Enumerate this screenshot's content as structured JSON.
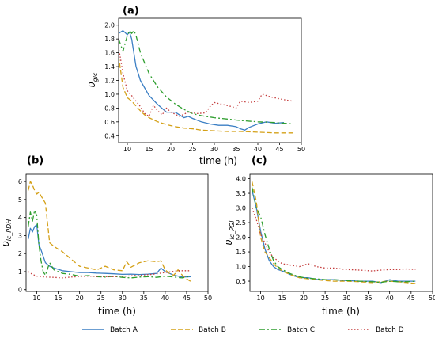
{
  "legend": {
    "placement": "bottom",
    "items": [
      {
        "label": "Batch A",
        "color": "#3b7fc4",
        "dash": "solid"
      },
      {
        "label": "Batch B",
        "color": "#d4a017",
        "dash": "dashed"
      },
      {
        "label": "Batch C",
        "color": "#2e9e2e",
        "dash": "dashdot"
      },
      {
        "label": "Batch D",
        "color": "#c43c3c",
        "dash": "dotted"
      }
    ]
  },
  "chart_data": [
    {
      "type": "line",
      "panel_label": "(a)",
      "xlabel": "time (h)",
      "ylabel": "v_glc",
      "ylabel_main": "υ",
      "ylabel_sub": "glc",
      "xlim": [
        8,
        50
      ],
      "ylim": [
        0.3,
        2.1
      ],
      "xticks": [
        10,
        15,
        20,
        25,
        30,
        35,
        40,
        45,
        50
      ],
      "yticks": [
        0.4,
        0.6,
        0.8,
        1.0,
        1.2,
        1.4,
        1.6,
        1.8,
        2.0
      ],
      "ytick_labels": [
        "0.4",
        "0.6",
        "0.8",
        "1.0",
        "1.2",
        "1.4",
        "1.6",
        "1.8",
        "2.0"
      ],
      "grid": false,
      "series": [
        {
          "name": "Batch A",
          "x": [
            8,
            9,
            10,
            10.5,
            11,
            12,
            13,
            15,
            17,
            19,
            20,
            21,
            22,
            23,
            24,
            25,
            27,
            29,
            31,
            33,
            35,
            36,
            37,
            38,
            40,
            42,
            44,
            46
          ],
          "y": [
            1.88,
            1.92,
            1.86,
            1.9,
            1.8,
            1.4,
            1.2,
            0.98,
            0.85,
            0.74,
            0.74,
            0.74,
            0.7,
            0.66,
            0.68,
            0.65,
            0.6,
            0.57,
            0.55,
            0.55,
            0.53,
            0.5,
            0.48,
            0.52,
            0.57,
            0.6,
            0.58,
            0.59
          ]
        },
        {
          "name": "Batch B",
          "x": [
            8,
            9,
            10,
            11,
            12,
            13,
            14,
            15,
            17,
            19,
            21,
            23,
            25,
            27,
            30,
            33,
            36,
            40,
            44,
            48
          ],
          "y": [
            1.55,
            1.1,
            0.95,
            0.9,
            0.83,
            0.76,
            0.7,
            0.66,
            0.6,
            0.56,
            0.53,
            0.51,
            0.5,
            0.48,
            0.47,
            0.46,
            0.46,
            0.45,
            0.44,
            0.44
          ]
        },
        {
          "name": "Batch C",
          "x": [
            8,
            9,
            10,
            10.5,
            11,
            11.5,
            12,
            13,
            15,
            17,
            19,
            21,
            23,
            25,
            27,
            30,
            33,
            36,
            40,
            44,
            48
          ],
          "y": [
            1.8,
            1.62,
            1.85,
            1.92,
            1.88,
            1.92,
            1.85,
            1.6,
            1.3,
            1.1,
            0.96,
            0.86,
            0.78,
            0.72,
            0.69,
            0.66,
            0.64,
            0.62,
            0.6,
            0.59,
            0.57
          ]
        },
        {
          "name": "Batch D",
          "x": [
            8,
            9,
            10,
            11,
            12,
            13,
            14,
            15,
            16,
            17,
            18,
            19,
            20,
            22,
            24,
            26,
            28,
            29,
            30,
            32,
            34,
            35,
            36,
            38,
            40,
            41,
            43,
            46,
            48
          ],
          "y": [
            1.68,
            1.3,
            1.05,
            0.98,
            0.9,
            0.82,
            0.72,
            0.68,
            0.84,
            0.76,
            0.7,
            0.8,
            0.74,
            0.68,
            0.74,
            0.72,
            0.73,
            0.82,
            0.88,
            0.85,
            0.82,
            0.8,
            0.9,
            0.88,
            0.9,
            1.0,
            0.96,
            0.92,
            0.9
          ]
        }
      ]
    },
    {
      "type": "line",
      "panel_label": "(b)",
      "xlabel": "time (h)",
      "ylabel": "v_lc_PDH",
      "ylabel_main": "υ",
      "ylabel_sub": "lc_PDH",
      "xlim": [
        7.5,
        50
      ],
      "ylim": [
        -0.1,
        6.4
      ],
      "xticks": [
        10,
        15,
        20,
        25,
        30,
        35,
        40,
        45,
        50
      ],
      "yticks": [
        0,
        1,
        2,
        3,
        4,
        5,
        6
      ],
      "ytick_labels": [
        "0",
        "1",
        "2",
        "3",
        "4",
        "5",
        "6"
      ],
      "grid": false,
      "series": [
        {
          "name": "Batch A",
          "x": [
            8,
            8.5,
            9,
            9.5,
            10,
            10.5,
            11,
            12,
            13,
            14,
            16,
            18,
            20,
            22,
            24,
            26,
            28,
            30,
            32,
            34,
            36,
            38,
            39,
            40,
            41,
            42,
            44,
            46
          ],
          "y": [
            2.8,
            3.4,
            3.2,
            3.5,
            3.6,
            2.5,
            2.2,
            1.5,
            1.3,
            1.2,
            1.05,
            1.0,
            0.95,
            0.95,
            0.92,
            0.9,
            0.88,
            0.85,
            0.86,
            0.84,
            0.86,
            0.9,
            1.2,
            1.0,
            0.9,
            0.8,
            0.7,
            0.72
          ]
        },
        {
          "name": "Batch B",
          "x": [
            8,
            8.5,
            9,
            9.5,
            10,
            10.5,
            11,
            12,
            13,
            14,
            16,
            18,
            20,
            22,
            24,
            26,
            28,
            30,
            31,
            32,
            34,
            36,
            38,
            39,
            40,
            41,
            42,
            43,
            44,
            45,
            46
          ],
          "y": [
            5.5,
            6.0,
            5.8,
            5.5,
            5.3,
            5.4,
            5.2,
            4.8,
            2.6,
            2.4,
            2.1,
            1.7,
            1.3,
            1.2,
            1.1,
            1.3,
            1.1,
            1.05,
            1.55,
            1.25,
            1.5,
            1.6,
            1.55,
            1.6,
            1.1,
            0.9,
            0.8,
            1.1,
            0.8,
            0.6,
            0.45
          ]
        },
        {
          "name": "Batch C",
          "x": [
            8,
            8.5,
            9,
            9.5,
            10,
            10.5,
            11,
            11.5,
            12,
            13,
            14,
            16,
            18,
            20,
            22,
            24,
            26,
            28,
            30,
            32,
            34,
            36,
            38,
            40,
            42,
            44,
            46
          ],
          "y": [
            3.5,
            4.3,
            3.8,
            4.4,
            4.1,
            2.5,
            1.6,
            1.0,
            0.8,
            1.5,
            1.1,
            0.9,
            0.85,
            0.75,
            0.78,
            0.72,
            0.7,
            0.74,
            0.68,
            0.65,
            0.7,
            0.72,
            0.68,
            0.75,
            0.7,
            0.65,
            0.75
          ]
        },
        {
          "name": "Batch D",
          "x": [
            8,
            9,
            10,
            12,
            14,
            16,
            18,
            20,
            22,
            25,
            28,
            31,
            34,
            37,
            40,
            43,
            46
          ],
          "y": [
            1.0,
            0.85,
            0.75,
            0.7,
            0.68,
            0.65,
            0.7,
            0.72,
            0.75,
            0.72,
            0.72,
            0.75,
            0.8,
            0.85,
            0.95,
            1.05,
            1.05
          ]
        }
      ]
    },
    {
      "type": "line",
      "panel_label": "(c)",
      "xlabel": "time (h)",
      "ylabel": "v_lc_PGI",
      "ylabel_main": "υ",
      "ylabel_sub": "lc_PGI",
      "xlim": [
        7.5,
        50
      ],
      "ylim": [
        0.15,
        4.15
      ],
      "xticks": [
        10,
        15,
        20,
        25,
        30,
        35,
        40,
        45,
        50
      ],
      "yticks": [
        0.5,
        1.0,
        1.5,
        2.0,
        2.5,
        3.0,
        3.5,
        4.0
      ],
      "ytick_labels": [
        "0.5",
        "1.0",
        "1.5",
        "2.0",
        "2.5",
        "3.0",
        "3.5",
        "4.0"
      ],
      "grid": false,
      "series": [
        {
          "name": "Batch A",
          "x": [
            8,
            9,
            10,
            11,
            12,
            13,
            14,
            15,
            17,
            19,
            21,
            23,
            25,
            27,
            30,
            33,
            36,
            38,
            40,
            42,
            44,
            46
          ],
          "y": [
            3.6,
            3.0,
            2.2,
            1.6,
            1.2,
            1.0,
            0.9,
            0.85,
            0.72,
            0.62,
            0.62,
            0.56,
            0.55,
            0.55,
            0.52,
            0.5,
            0.5,
            0.45,
            0.55,
            0.5,
            0.5,
            0.5
          ]
        },
        {
          "name": "Batch B",
          "x": [
            8,
            9,
            10,
            11,
            12,
            13,
            14,
            15,
            17,
            19,
            21,
            23,
            25,
            27,
            30,
            33,
            36,
            38,
            40,
            42,
            44,
            46
          ],
          "y": [
            3.9,
            3.2,
            2.0,
            1.5,
            1.3,
            1.1,
            0.95,
            0.85,
            0.72,
            0.62,
            0.58,
            0.55,
            0.52,
            0.5,
            0.5,
            0.48,
            0.45,
            0.48,
            0.5,
            0.48,
            0.45,
            0.42
          ]
        },
        {
          "name": "Batch C",
          "x": [
            8,
            9,
            10,
            11,
            12,
            13,
            14,
            15,
            17,
            19,
            21,
            23,
            25,
            27,
            30,
            33,
            36,
            38,
            40,
            42,
            44,
            46
          ],
          "y": [
            3.7,
            3.0,
            2.7,
            2.1,
            1.6,
            1.2,
            1.0,
            0.9,
            0.75,
            0.65,
            0.6,
            0.58,
            0.55,
            0.55,
            0.52,
            0.5,
            0.48,
            0.46,
            0.5,
            0.48,
            0.48,
            0.5
          ]
        },
        {
          "name": "Batch D",
          "x": [
            8,
            9,
            10,
            11,
            12,
            13,
            14,
            15,
            17,
            19,
            21,
            23,
            25,
            27,
            30,
            33,
            36,
            38,
            40,
            42,
            44,
            46
          ],
          "y": [
            3.0,
            2.6,
            2.1,
            1.8,
            1.5,
            1.3,
            1.2,
            1.1,
            1.05,
            1.0,
            1.1,
            1.0,
            0.95,
            0.95,
            0.9,
            0.88,
            0.85,
            0.88,
            0.9,
            0.9,
            0.92,
            0.9
          ]
        }
      ]
    }
  ]
}
